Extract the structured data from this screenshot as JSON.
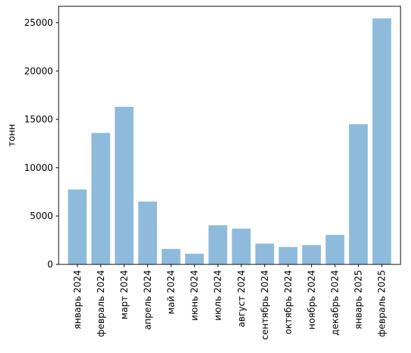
{
  "chart_data": {
    "type": "bar",
    "title": "",
    "xlabel": "",
    "ylabel": "тонн",
    "ylim": [
      0,
      26700
    ],
    "yticks": [
      0,
      5000,
      10000,
      15000,
      20000,
      25000
    ],
    "grid": false,
    "categories": [
      "январь 2024",
      "февраль 2024",
      "март 2024",
      "апрель 2024",
      "май 2024",
      "июнь 2024",
      "июль 2024",
      "август 2024",
      "сентябрь 2024",
      "октябрь 2024",
      "ноябрь 2024",
      "декабрь 2024",
      "январь 2025",
      "февраль 2025"
    ],
    "values": [
      7750,
      13600,
      16300,
      6500,
      1600,
      1100,
      4050,
      3700,
      2150,
      1800,
      2000,
      3050,
      14500,
      25450
    ],
    "bar_color": "#8ebbdb"
  }
}
